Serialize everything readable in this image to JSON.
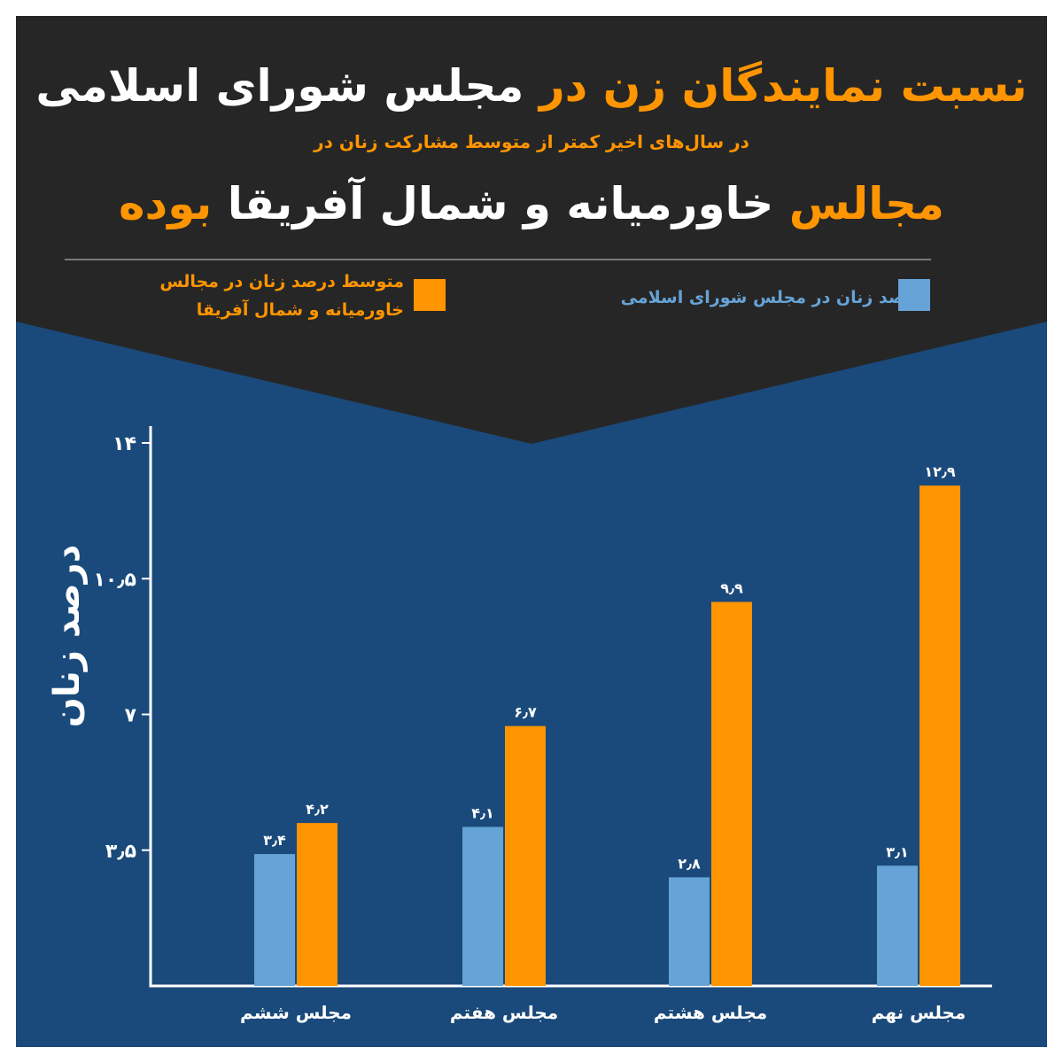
{
  "header": {
    "title_line1_orange": "نسبت نمایندگان زن در",
    "title_line1_white": "مجلس شورای اسلامی",
    "subtitle": "در سال‌های اخیر کمتر از متوسط مشارکت زنان در",
    "title_line2_orange1": "مجالس",
    "title_line2_white": "خاورمیانه و شمال آفریقا",
    "title_line2_orange2": "بوده"
  },
  "colors": {
    "background_top": "#262626",
    "background_bottom": "#1a4a7b",
    "accent_orange": "#ff9500",
    "series_blue": "#66a3d7"
  },
  "chart_data": {
    "type": "bar",
    "categories": [
      "مجلس ششم",
      "مجلس هفتم",
      "مجلس هشتم",
      "مجلس نهم"
    ],
    "series": [
      {
        "name": "درصد زنان در مجلس شورای اسلامی",
        "values": [
          3.4,
          4.1,
          2.8,
          3.1
        ],
        "labels": [
          "۳٫۴",
          "۴٫۱",
          "۲٫۸",
          "۳٫۱"
        ],
        "color": "#66a3d7"
      },
      {
        "name": "متوسط درصد زنان در مجالس خاورمیانه و شمال آفریقا",
        "values": [
          4.2,
          6.7,
          9.9,
          12.9
        ],
        "labels": [
          "۴٫۲",
          "۶٫۷",
          "۹٫۹",
          "۱۲٫۹"
        ],
        "color": "#ff9500"
      }
    ],
    "yticks": [
      3.5,
      7,
      10.5,
      14
    ],
    "ytick_labels": [
      "۳٫۵",
      "۷",
      "۱۰٫۵",
      "۱۴"
    ],
    "ylim": [
      0,
      14
    ],
    "ylabel": "درصد زنان",
    "xlabel": "",
    "legend_position": "top",
    "grid": false
  }
}
